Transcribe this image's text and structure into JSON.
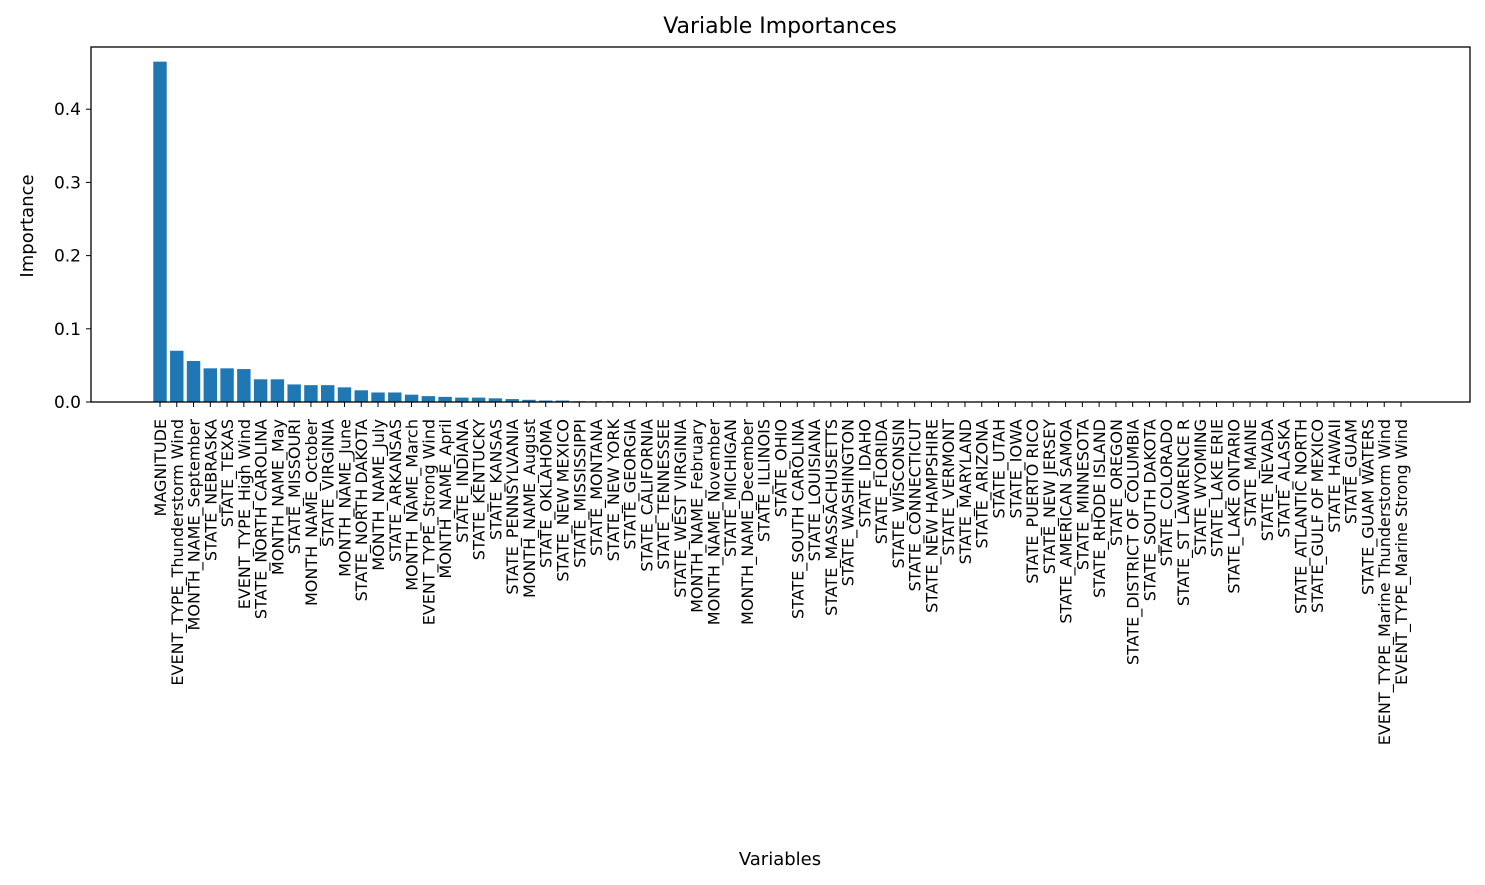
{
  "chart_data": {
    "type": "bar",
    "title": "Variable Importances",
    "xlabel": "Variables",
    "ylabel": "Importance",
    "ylim": [
      0,
      0.485
    ],
    "yticks": [
      0.0,
      0.1,
      0.2,
      0.3,
      0.4
    ],
    "ytick_labels": [
      "0.0",
      "0.1",
      "0.2",
      "0.3",
      "0.4"
    ],
    "bar_color": "#1f77b4",
    "grid": false,
    "legend": "none",
    "categories": [
      "MAGNITUDE",
      "EVENT_TYPE_Thunderstorm Wind",
      "MONTH_NAME_September",
      "STATE_NEBRASKA",
      "STATE_TEXAS",
      "EVENT_TYPE_High Wind",
      "STATE_NORTH CAROLINA",
      "MONTH_NAME_May",
      "STATE_MISSOURI",
      "MONTH_NAME_October",
      "STATE_VIRGINIA",
      "MONTH_NAME_June",
      "STATE_NORTH DAKOTA",
      "MONTH_NAME_July",
      "STATE_ARKANSAS",
      "MONTH_NAME_March",
      "EVENT_TYPE_Strong Wind",
      "MONTH_NAME_April",
      "STATE_INDIANA",
      "STATE_KENTUCKY",
      "STATE_KANSAS",
      "STATE_PENNSYLVANIA",
      "MONTH_NAME_August",
      "STATE_OKLAHOMA",
      "STATE_NEW MEXICO",
      "STATE_MISSISSIPPI",
      "STATE_MONTANA",
      "STATE_NEW YORK",
      "STATE_GEORGIA",
      "STATE_CALIFORNIA",
      "STATE_TENNESSEE",
      "STATE_WEST VIRGINIA",
      "MONTH_NAME_February",
      "MONTH_NAME_November",
      "STATE_MICHIGAN",
      "MONTH_NAME_December",
      "STATE_ILLINOIS",
      "STATE_OHIO",
      "STATE_SOUTH CAROLINA",
      "STATE_LOUISIANA",
      "STATE_MASSACHUSETTS",
      "STATE_WASHINGTON",
      "STATE_IDAHO",
      "STATE_FLORIDA",
      "STATE_WISCONSIN",
      "STATE_CONNECTICUT",
      "STATE_NEW HAMPSHIRE",
      "STATE_VERMONT",
      "STATE_MARYLAND",
      "STATE_ARIZONA",
      "STATE_UTAH",
      "STATE_IOWA",
      "STATE_PUERTO RICO",
      "STATE_NEW JERSEY",
      "STATE_AMERICAN SAMOA",
      "STATE_MINNESOTA",
      "STATE_RHODE ISLAND",
      "STATE_OREGON",
      "STATE_DISTRICT OF COLUMBIA",
      "STATE_SOUTH DAKOTA",
      "STATE_COLORADO",
      "STATE_ST LAWRENCE R",
      "STATE_WYOMING",
      "STATE_LAKE ERIE",
      "STATE_LAKE ONTARIO",
      "STATE_MAINE",
      "STATE_NEVADA",
      "STATE_ALASKA",
      "STATE_ATLANTIC NORTH",
      "STATE_GULF OF MEXICO",
      "STATE_HAWAII",
      "STATE_GUAM",
      "STATE_GUAM WATERS",
      "EVENT_TYPE_Marine Thunderstorm Wind",
      "EVENT_TYPE_Marine Strong Wind"
    ],
    "values": [
      0.465,
      0.07,
      0.056,
      0.046,
      0.046,
      0.045,
      0.031,
      0.031,
      0.024,
      0.023,
      0.023,
      0.02,
      0.016,
      0.013,
      0.013,
      0.01,
      0.008,
      0.007,
      0.006,
      0.006,
      0.005,
      0.004,
      0.003,
      0.002,
      0.002,
      0.001,
      0.001,
      0.001,
      0.0005,
      0.0005,
      0.0005,
      0.0004,
      0.0004,
      0.0004,
      0.0003,
      0.0003,
      0.0003,
      0.0003,
      0.0002,
      0.0002,
      0.0002,
      0.0002,
      0.0002,
      0.0001,
      0.0001,
      0.0001,
      0.0001,
      0.0001,
      0.0001,
      0.0001,
      0.0001,
      0.0001,
      0.0001,
      0.0001,
      0.0001,
      0.0001,
      0.0001,
      0.0,
      0.0,
      0.0,
      0.0,
      0.0,
      0.0,
      0.0,
      0.0,
      0.0,
      0.0,
      0.0,
      0.0,
      0.0,
      0.0,
      0.0,
      0.0,
      0.0,
      0.0
    ]
  }
}
